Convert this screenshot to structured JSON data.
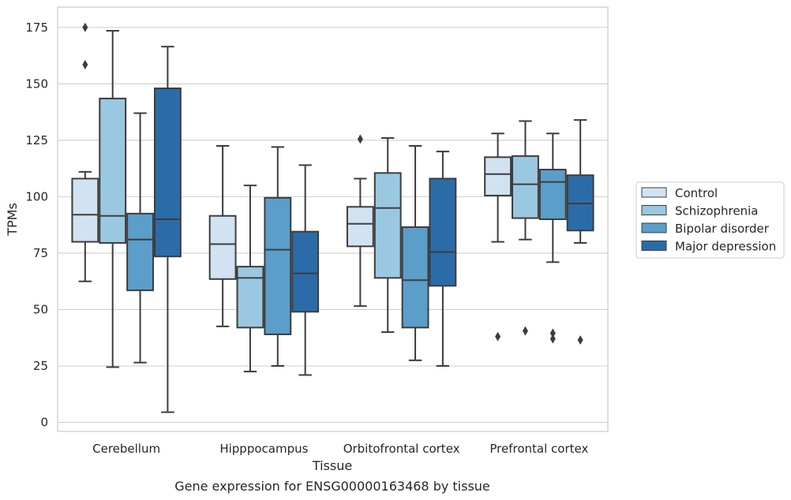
{
  "chart_data": {
    "type": "box",
    "caption": "Gene expression for ENSG00000163468 by tissue",
    "xlabel": "Tissue",
    "ylabel": "TPMs",
    "ylim": [
      -4,
      184
    ],
    "yticks": [
      0,
      25,
      50,
      75,
      100,
      125,
      150,
      175
    ],
    "grid": "horizontal",
    "legend_position": "right",
    "categories": [
      "Cerebellum",
      "Hipppocampus",
      "Orbitofrontal cortex",
      "Prefrontal cortex"
    ],
    "series": [
      {
        "name": "Control",
        "color": "#d1e2f2",
        "boxes": [
          {
            "whislo": 62.5,
            "q1": 80,
            "med": 92,
            "q3": 108,
            "whishi": 111,
            "fliers": [
              158.5,
              175
            ]
          },
          {
            "whislo": 42.5,
            "q1": 63.5,
            "med": 79,
            "q3": 91.5,
            "whishi": 122.5,
            "fliers": []
          },
          {
            "whislo": 51.5,
            "q1": 78,
            "med": 88,
            "q3": 95.5,
            "whishi": 108,
            "fliers": [
              125.5
            ]
          },
          {
            "whislo": 80,
            "q1": 100.5,
            "med": 110,
            "q3": 117.5,
            "whishi": 128,
            "fliers": [
              38
            ]
          }
        ]
      },
      {
        "name": "Schizophrenia",
        "color": "#9ac8e0",
        "boxes": [
          {
            "whislo": 24.5,
            "q1": 79.5,
            "med": 91.5,
            "q3": 143.5,
            "whishi": 173.5,
            "fliers": []
          },
          {
            "whislo": 22.5,
            "q1": 42,
            "med": 64,
            "q3": 69,
            "whishi": 105,
            "fliers": []
          },
          {
            "whislo": 40,
            "q1": 64,
            "med": 95,
            "q3": 110.5,
            "whishi": 126,
            "fliers": []
          },
          {
            "whislo": 81,
            "q1": 90.5,
            "med": 105.5,
            "q3": 118,
            "whishi": 133.5,
            "fliers": [
              40.5
            ]
          }
        ]
      },
      {
        "name": "Bipolar disorder",
        "color": "#5a9ec9",
        "boxes": [
          {
            "whislo": 26.5,
            "q1": 58.5,
            "med": 81,
            "q3": 92.5,
            "whishi": 137,
            "fliers": []
          },
          {
            "whislo": 25,
            "q1": 39,
            "med": 76.5,
            "q3": 99.5,
            "whishi": 122,
            "fliers": []
          },
          {
            "whislo": 27.5,
            "q1": 42,
            "med": 63,
            "q3": 86.5,
            "whishi": 122.5,
            "fliers": []
          },
          {
            "whislo": 71,
            "q1": 90,
            "med": 106.5,
            "q3": 112,
            "whishi": 128,
            "fliers": [
              37,
              39.5
            ]
          }
        ]
      },
      {
        "name": "Major depression",
        "color": "#2b6ca8",
        "boxes": [
          {
            "whislo": 4.5,
            "q1": 73.5,
            "med": 90,
            "q3": 148,
            "whishi": 166.5,
            "fliers": []
          },
          {
            "whislo": 21,
            "q1": 49,
            "med": 66,
            "q3": 84.5,
            "whishi": 114,
            "fliers": []
          },
          {
            "whislo": 25,
            "q1": 60.5,
            "med": 75.5,
            "q3": 108,
            "whishi": 120,
            "fliers": []
          },
          {
            "whislo": 79.5,
            "q1": 85,
            "med": 97,
            "q3": 109.5,
            "whishi": 134,
            "fliers": [
              36.5
            ]
          }
        ]
      }
    ]
  },
  "colors": {
    "grid": "#cfcfcf",
    "frame": "#cccccc",
    "line": "#3d3d3d",
    "text": "#262626"
  }
}
